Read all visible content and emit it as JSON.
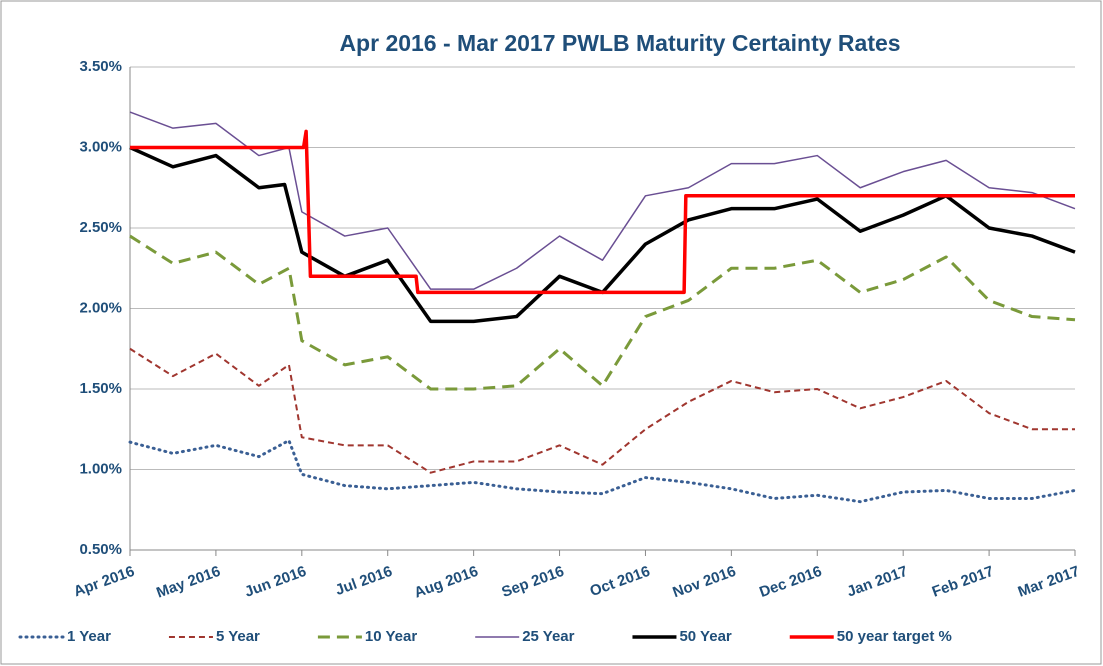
{
  "chart_data": {
    "type": "line",
    "title": "Apr 2016 - Mar 2017 PWLB Maturity Certainty Rates",
    "xlim": [
      0,
      11
    ],
    "xticks": [
      {
        "value": 0,
        "label": "Apr 2016"
      },
      {
        "value": 1,
        "label": "May 2016"
      },
      {
        "value": 2,
        "label": "Jun 2016"
      },
      {
        "value": 3,
        "label": "Jul 2016"
      },
      {
        "value": 4,
        "label": "Aug 2016"
      },
      {
        "value": 5,
        "label": "Sep 2016"
      },
      {
        "value": 6,
        "label": "Oct 2016"
      },
      {
        "value": 7,
        "label": "Nov 2016"
      },
      {
        "value": 8,
        "label": "Dec 2016"
      },
      {
        "value": 9,
        "label": "Jan 2017"
      },
      {
        "value": 10,
        "label": "Feb 2017"
      },
      {
        "value": 11,
        "label": "Mar 2017"
      }
    ],
    "ylim": [
      0.5,
      3.5
    ],
    "yticks": [
      {
        "value": 0.5,
        "label": "0.50%"
      },
      {
        "value": 1.0,
        "label": "1.00%"
      },
      {
        "value": 1.5,
        "label": "1.50%"
      },
      {
        "value": 2.0,
        "label": "2.00%"
      },
      {
        "value": 2.5,
        "label": "2.50%"
      },
      {
        "value": 3.0,
        "label": "3.00%"
      },
      {
        "value": 3.5,
        "label": "3.50%"
      }
    ],
    "grid": true,
    "legend": "bottom",
    "series": [
      {
        "name": "1 Year",
        "color": "#3a5f94",
        "style": "dotted",
        "x": [
          0,
          0.5,
          1,
          1.5,
          1.85,
          2,
          2.5,
          3,
          3.5,
          4,
          4.5,
          5,
          5.5,
          6,
          6.5,
          7,
          7.5,
          8,
          8.5,
          9,
          9.5,
          10,
          10.5,
          11
        ],
        "values": [
          1.17,
          1.1,
          1.15,
          1.08,
          1.18,
          0.97,
          0.9,
          0.88,
          0.9,
          0.92,
          0.88,
          0.86,
          0.85,
          0.95,
          0.92,
          0.88,
          0.82,
          0.84,
          0.8,
          0.86,
          0.87,
          0.82,
          0.82,
          0.87
        ]
      },
      {
        "name": "5 Year",
        "color": "#a0362f",
        "style": "dashed",
        "x": [
          0,
          0.5,
          1,
          1.5,
          1.85,
          2,
          2.5,
          3,
          3.5,
          4,
          4.5,
          5,
          5.5,
          6,
          6.5,
          7,
          7.5,
          8,
          8.5,
          9,
          9.5,
          10,
          10.5,
          11
        ],
        "values": [
          1.75,
          1.58,
          1.72,
          1.52,
          1.65,
          1.2,
          1.15,
          1.15,
          0.98,
          1.05,
          1.05,
          1.15,
          1.03,
          1.25,
          1.42,
          1.55,
          1.48,
          1.5,
          1.38,
          1.45,
          1.55,
          1.35,
          1.25,
          1.25
        ]
      },
      {
        "name": "10 Year",
        "color": "#7a9a3a",
        "style": "longdash",
        "x": [
          0,
          0.5,
          1,
          1.5,
          1.85,
          2,
          2.5,
          3,
          3.5,
          4,
          4.5,
          5,
          5.5,
          6,
          6.5,
          7,
          7.5,
          8,
          8.5,
          9,
          9.5,
          10,
          10.5,
          11
        ],
        "values": [
          2.45,
          2.28,
          2.35,
          2.15,
          2.25,
          1.8,
          1.65,
          1.7,
          1.5,
          1.5,
          1.52,
          1.75,
          1.52,
          1.95,
          2.05,
          2.25,
          2.25,
          2.3,
          2.1,
          2.18,
          2.32,
          2.05,
          1.95,
          1.93
        ]
      },
      {
        "name": "25 Year",
        "color": "#6a4f93",
        "style": "thin",
        "x": [
          0,
          0.5,
          1,
          1.5,
          1.85,
          2,
          2.5,
          3,
          3.5,
          4,
          4.5,
          5,
          5.5,
          6,
          6.5,
          7,
          7.5,
          8,
          8.5,
          9,
          9.5,
          10,
          10.5,
          11
        ],
        "values": [
          3.22,
          3.12,
          3.15,
          2.95,
          3.0,
          2.6,
          2.45,
          2.5,
          2.12,
          2.12,
          2.25,
          2.45,
          2.3,
          2.7,
          2.75,
          2.9,
          2.9,
          2.95,
          2.75,
          2.85,
          2.92,
          2.75,
          2.72,
          2.62
        ]
      },
      {
        "name": "50 Year",
        "color": "#000000",
        "style": "thick",
        "x": [
          0,
          0.5,
          1,
          1.5,
          1.8,
          2,
          2.5,
          3,
          3.5,
          4,
          4.5,
          5,
          5.5,
          6,
          6.5,
          7,
          7.5,
          8,
          8.5,
          9,
          9.5,
          10,
          10.5,
          11
        ],
        "values": [
          3.0,
          2.88,
          2.95,
          2.75,
          2.77,
          2.35,
          2.2,
          2.3,
          1.92,
          1.92,
          1.95,
          2.2,
          2.1,
          2.4,
          2.55,
          2.62,
          2.62,
          2.68,
          2.48,
          2.58,
          2.7,
          2.5,
          2.45,
          2.35
        ]
      },
      {
        "name": "50 year target %",
        "color": "#ff0000",
        "style": "thick",
        "x": [
          0,
          2.02,
          2.05,
          2.1,
          3.33,
          3.35,
          6.45,
          6.47,
          11
        ],
        "values": [
          3.0,
          3.0,
          3.1,
          2.2,
          2.2,
          2.1,
          2.1,
          2.7,
          2.7
        ]
      }
    ]
  }
}
